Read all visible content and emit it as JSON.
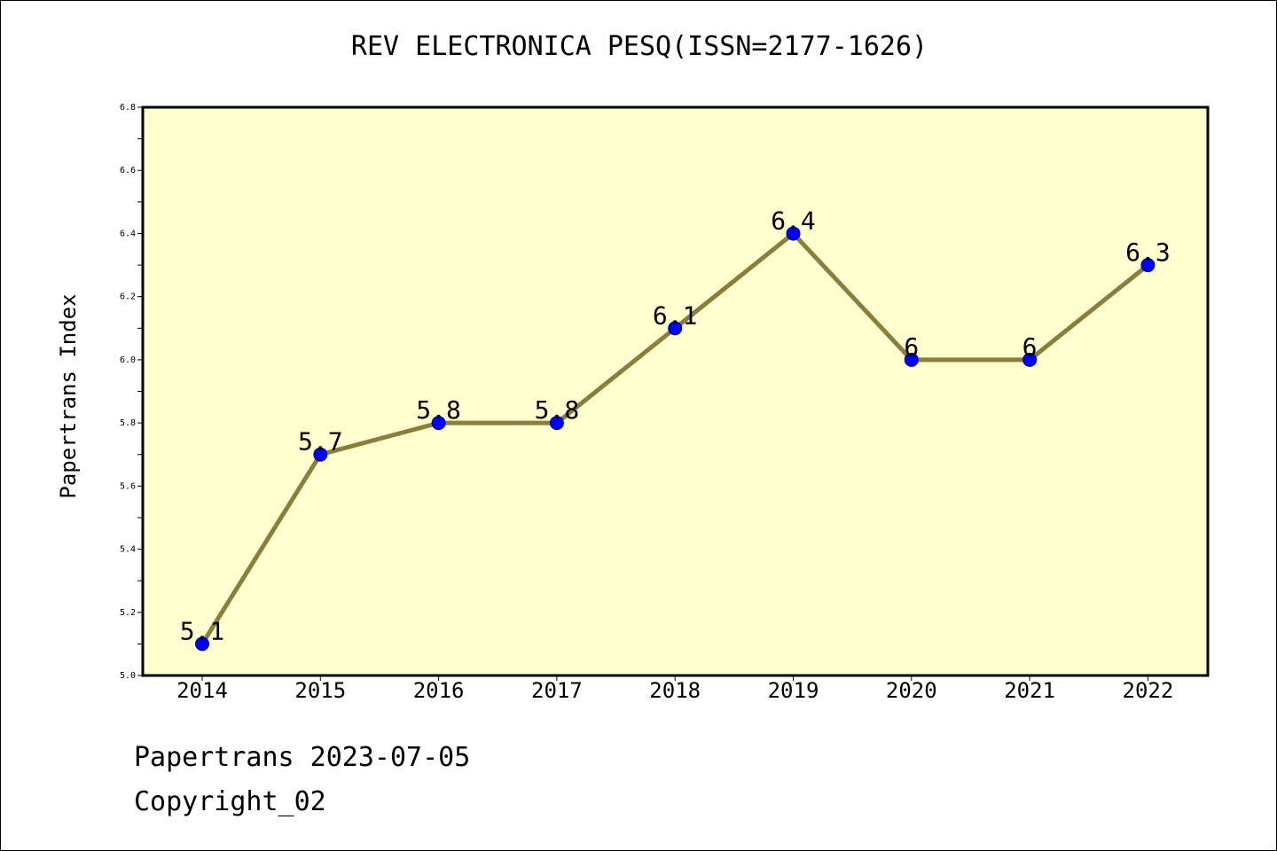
{
  "chart_data": {
    "type": "line",
    "title": "REV ELECTRONICA PESQ(ISSN=2177-1626)",
    "xlabel": "",
    "ylabel": "Papertrans Index",
    "categories": [
      "2014",
      "2015",
      "2016",
      "2017",
      "2018",
      "2019",
      "2020",
      "2021",
      "2022"
    ],
    "values": [
      5.1,
      5.7,
      5.8,
      5.8,
      6.1,
      6.4,
      6.0,
      6.0,
      6.3
    ],
    "data_labels": [
      "5.1",
      "5.7",
      "5.8",
      "5.8",
      "6.1",
      "6.4",
      "6",
      "6",
      "6.3"
    ],
    "ylim": [
      5.0,
      6.8
    ],
    "yticks": [
      "5.0",
      "5.2",
      "5.4",
      "5.6",
      "5.8",
      "6.0",
      "6.2",
      "6.4",
      "6.6",
      "6.8"
    ],
    "grid": false,
    "legend": "none",
    "colors": {
      "plot_background": "#ffffd0",
      "line": "#8b7d3a",
      "marker": "#0000ff",
      "marker_edge": "#00008b",
      "axis": "#000000"
    }
  },
  "footer": {
    "date_text": "Papertrans 2023-07-05",
    "copyright_text": "Copyright_02"
  }
}
